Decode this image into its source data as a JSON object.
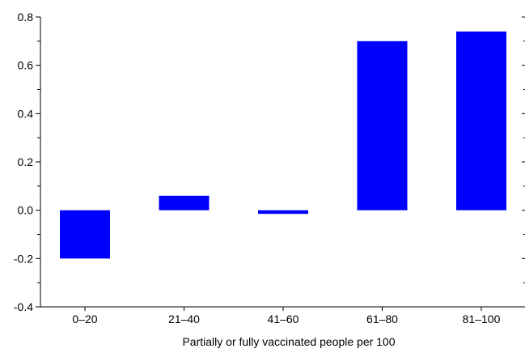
{
  "chart_data": {
    "type": "bar",
    "title": "",
    "xlabel": "Partially or fully vaccinated people per 100",
    "ylabel": "",
    "categories": [
      "0–20",
      "21–40",
      "41–60",
      "61–80",
      "81–100"
    ],
    "values": [
      -0.2,
      0.06,
      -0.015,
      0.7,
      0.74
    ],
    "ylim": [
      -0.4,
      0.8
    ],
    "yticks": [
      -0.4,
      -0.2,
      0.0,
      0.2,
      0.4,
      0.6,
      0.8
    ],
    "ytick_labels": [
      "-0.4",
      "-0.2",
      "0.0",
      "0.2",
      "0.4",
      "0.6",
      "0.8"
    ],
    "grid": false,
    "legend": "none",
    "bar_color": "#0000ff",
    "axis_color": "#000000"
  }
}
